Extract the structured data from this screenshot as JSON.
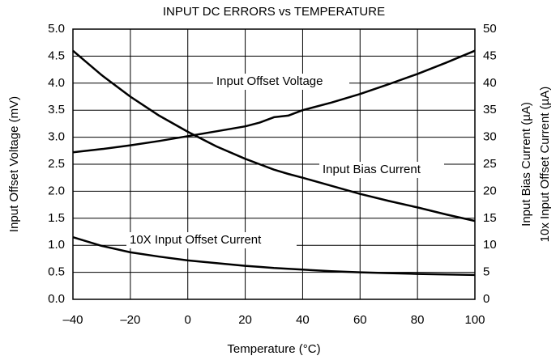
{
  "chart_data": {
    "type": "line",
    "title": "INPUT DC ERRORS vs TEMPERATURE",
    "xlabel": "Temperature (°C)",
    "ylabel": "Input Offset Voltage (mV)",
    "y2label": [
      "Input Bias Current (µA)",
      "10x Input Offset Current (µA)"
    ],
    "x": [
      -40,
      -30,
      -20,
      -10,
      0,
      10,
      20,
      25,
      30,
      35,
      40,
      50,
      60,
      70,
      80,
      90,
      100
    ],
    "series": [
      {
        "name": "Input Offset Voltage",
        "color": "#000000",
        "axis": "y",
        "values": [
          2.72,
          2.78,
          2.85,
          2.93,
          3.02,
          3.11,
          3.2,
          3.27,
          3.37,
          3.4,
          3.5,
          3.64,
          3.8,
          3.98,
          4.17,
          4.38,
          4.6
        ]
      },
      {
        "name": "Input Bias Current",
        "color": "#000000",
        "axis": "y2",
        "values": [
          46,
          41.5,
          37.5,
          34,
          31,
          28.3,
          26,
          25,
          24,
          23.2,
          22.5,
          21,
          19.5,
          18.2,
          17,
          15.7,
          14.5
        ]
      },
      {
        "name": "10X Input Offset Current",
        "color": "#000000",
        "axis": "y2",
        "values": [
          11.5,
          9.9,
          8.7,
          7.9,
          7.2,
          6.7,
          6.2,
          6.0,
          5.8,
          5.65,
          5.5,
          5.2,
          5.0,
          4.85,
          4.7,
          4.6,
          4.5
        ]
      }
    ],
    "xlim": [
      -40,
      100
    ],
    "xticks": [
      {
        "value": -40,
        "label": "–40"
      },
      {
        "value": -20,
        "label": "–20"
      },
      {
        "value": 0,
        "label": "0"
      },
      20,
      40,
      60,
      80,
      100
    ],
    "ylim": [
      0,
      5
    ],
    "yticks": [
      {
        "value": 0,
        "label": "0.0"
      },
      0.5,
      {
        "value": 1,
        "label": "1.0"
      },
      1.5,
      {
        "value": 2,
        "label": "2.0"
      },
      2.5,
      {
        "value": 3,
        "label": "3.0"
      },
      3.5,
      {
        "value": 4,
        "label": "4.0"
      },
      4.5,
      {
        "value": 5,
        "label": "5.0"
      }
    ],
    "y2lim": [
      0,
      50
    ],
    "y2ticks": [
      0,
      5,
      10,
      15,
      20,
      25,
      30,
      35,
      40,
      45,
      50
    ],
    "grid": true
  }
}
